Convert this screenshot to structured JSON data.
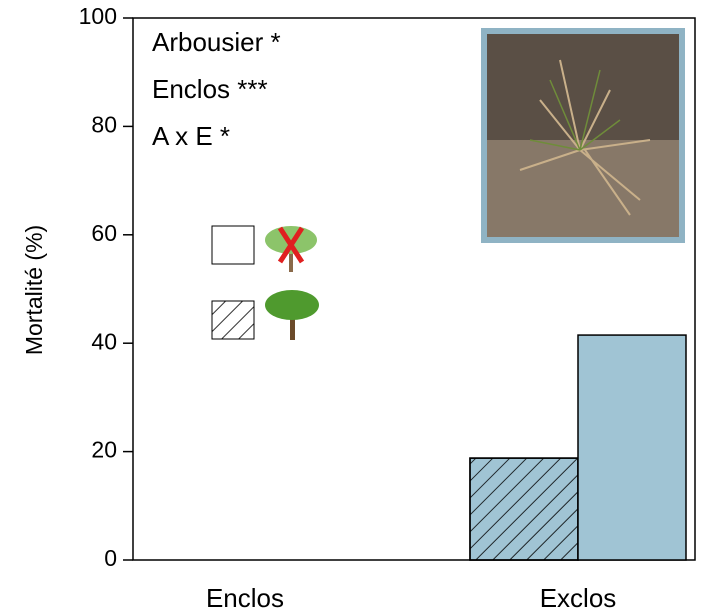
{
  "chart_data": {
    "type": "bar",
    "y_label": "Mortalité  (%)",
    "annotations": [
      "Arbousier *",
      "Enclos ***",
      "A x E *"
    ],
    "categories": [
      "Enclos",
      "Exclos"
    ],
    "series": [
      {
        "color": "#a0c4d4",
        "hatch": true,
        "values": [
          0,
          18.8
        ]
      },
      {
        "color": "#a0c4d4",
        "hatch": false,
        "values": [
          0,
          41.5
        ]
      }
    ],
    "ylim": [
      0,
      100
    ],
    "yticks": [
      0,
      20,
      40,
      60,
      80,
      100
    ],
    "grid": false
  }
}
